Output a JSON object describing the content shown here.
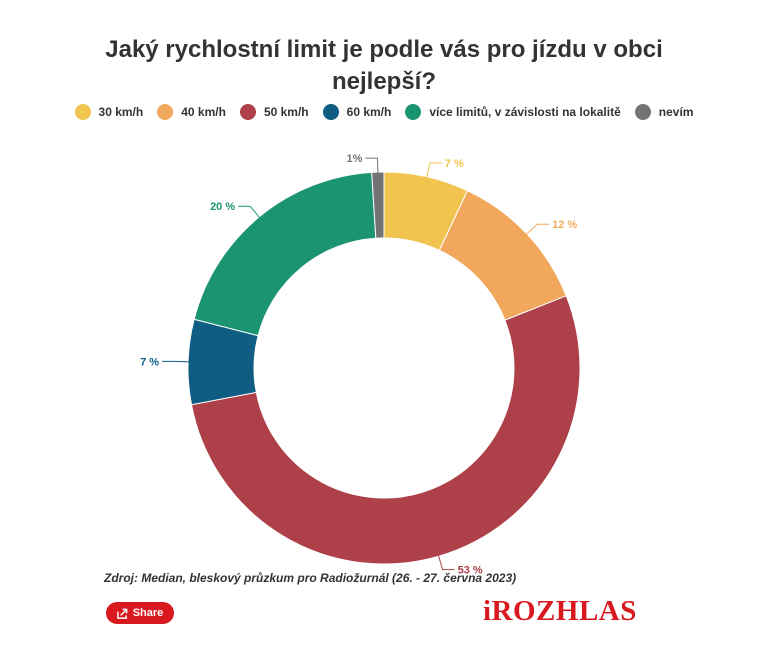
{
  "chart_data": {
    "type": "pie",
    "title": "Jaký rychlostní limit je podle vás pro jízdu v obci nejlepší?",
    "legend_position": "top-center",
    "slices": [
      {
        "name": "30 km/h",
        "value": 7,
        "label": "7 %",
        "color": "#f0c44e"
      },
      {
        "name": "40 km/h",
        "value": 12,
        "label": "12 %",
        "color": "#f2a85c"
      },
      {
        "name": "50 km/h",
        "value": 53,
        "label": "53 %",
        "color": "#ae4049"
      },
      {
        "name": "60 km/h",
        "value": 7,
        "label": "7 %",
        "color": "#0f5d82"
      },
      {
        "name": "více limitů, v závislosti na lokalitě",
        "value": 20,
        "label": "20 %",
        "color": "#1b9472"
      },
      {
        "name": "nevím",
        "value": 1,
        "label": "1%",
        "color": "#737373"
      }
    ]
  },
  "source": "Zdroj: Median, bleskový průzkum pro Radiožurnál (26. - 27. června 2023)",
  "share_label": "Share",
  "logo_text": "iROZHLAS"
}
